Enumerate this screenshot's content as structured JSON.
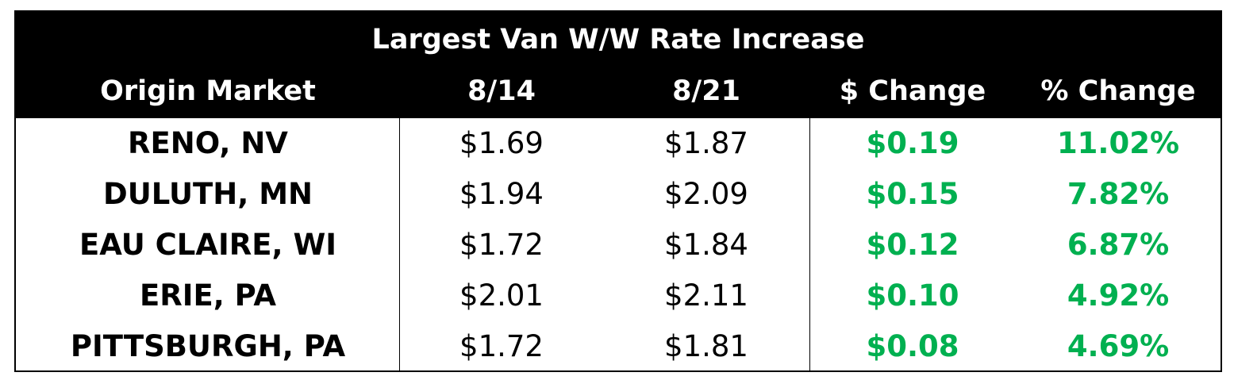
{
  "chart_data": {
    "type": "table",
    "title": "Largest Van W/W Rate Increase",
    "columns": [
      "Origin Market",
      "8/14",
      "8/21",
      "$ Change",
      "% Change"
    ],
    "rows": [
      [
        "RENO, NV",
        "$1.69",
        "$1.87",
        "$0.19",
        "11.02%"
      ],
      [
        "DULUTH, MN",
        "$1.94",
        "$2.09",
        "$0.15",
        "7.82%"
      ],
      [
        "EAU CLAIRE, WI",
        "$1.72",
        "$1.84",
        "$0.12",
        "6.87%"
      ],
      [
        "ERIE, PA",
        "$2.01",
        "$2.11",
        "$0.10",
        "4.92%"
      ],
      [
        "PITTSBURGH, PA",
        "$1.72",
        "$1.81",
        "$0.08",
        "4.69%"
      ]
    ]
  },
  "colors": {
    "header_background": "#000000",
    "header_text": "#ffffff",
    "change_text": "#00b050",
    "body_text": "#000000"
  }
}
